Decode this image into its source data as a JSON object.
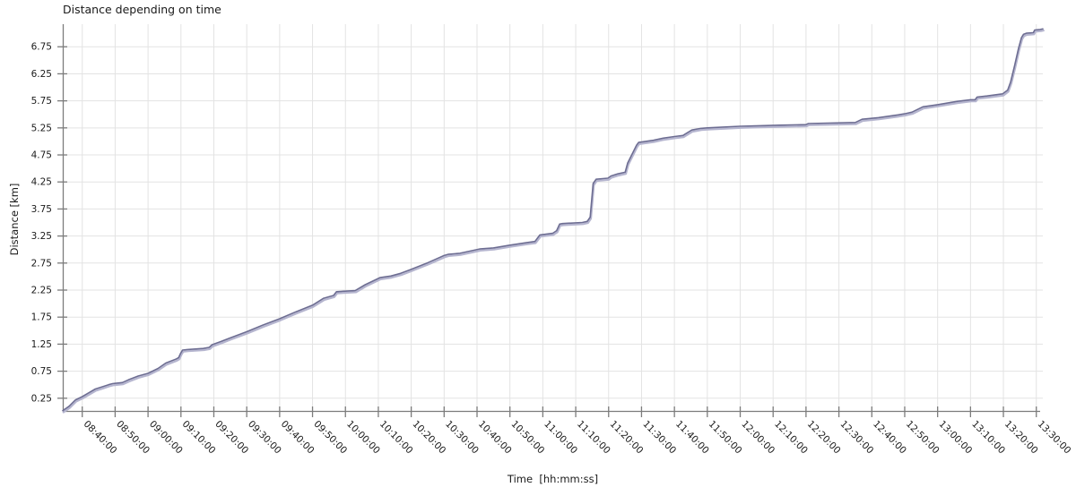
{
  "title": "Distance depending on time",
  "axes": {
    "x_label": "Time  [hh:mm:ss]",
    "y_label": "Distance [km]"
  },
  "chart_data": {
    "type": "line",
    "title": "Distance depending on time",
    "xlabel": "Time [hh:mm:ss]",
    "ylabel": "Distance [km]",
    "grid": true,
    "legend_position": "none",
    "x_tick_labels": [
      "08:40:00",
      "08:50:00",
      "09:00:00",
      "09:10:00",
      "09:20:00",
      "09:30:00",
      "09:40:00",
      "09:50:00",
      "10:00:00",
      "10:10:00",
      "10:20:00",
      "10:30:00",
      "10:40:00",
      "10:50:00",
      "11:00:00",
      "11:10:00",
      "11:20:00",
      "11:30:00",
      "11:40:00",
      "11:50:00",
      "12:00:00",
      "12:10:00",
      "12:20:00",
      "12:30:00",
      "12:40:00",
      "12:50:00",
      "13:00:00",
      "13:10:00",
      "13:20:00",
      "13:30:00"
    ],
    "x_tick_hours": [
      8.6667,
      8.8333,
      9.0,
      9.1667,
      9.3333,
      9.5,
      9.6667,
      9.8333,
      10.0,
      10.1667,
      10.3333,
      10.5,
      10.6667,
      10.8333,
      11.0,
      11.1667,
      11.3333,
      11.5,
      11.6667,
      11.8333,
      12.0,
      12.1667,
      12.3333,
      12.5,
      12.6667,
      12.8333,
      13.0,
      13.1667,
      13.3333,
      13.5
    ],
    "y_ticks": [
      "0.25",
      "0.75",
      "1.25",
      "1.75",
      "2.25",
      "2.75",
      "3.25",
      "3.75",
      "4.25",
      "4.75",
      "5.25",
      "5.75",
      "6.25",
      "6.75"
    ],
    "y_tick_values": [
      0.25,
      0.75,
      1.25,
      1.75,
      2.25,
      2.75,
      3.25,
      3.75,
      4.25,
      4.75,
      5.25,
      5.75,
      6.25,
      6.75
    ],
    "x_range_hours": [
      8.568,
      13.533
    ],
    "y_range_km": [
      -0.035,
      7.168
    ],
    "series": [
      {
        "name": "distance",
        "points": [
          [
            8.568,
            0.02
          ],
          [
            8.6,
            0.1
          ],
          [
            8.633,
            0.22
          ],
          [
            8.667,
            0.28
          ],
          [
            8.7,
            0.35
          ],
          [
            8.733,
            0.42
          ],
          [
            8.767,
            0.46
          ],
          [
            8.8,
            0.5
          ],
          [
            8.82,
            0.52
          ],
          [
            8.87,
            0.54
          ],
          [
            8.9,
            0.59
          ],
          [
            8.95,
            0.66
          ],
          [
            9.0,
            0.71
          ],
          [
            9.05,
            0.8
          ],
          [
            9.09,
            0.9
          ],
          [
            9.14,
            0.97
          ],
          [
            9.155,
            1.0
          ],
          [
            9.165,
            1.08
          ],
          [
            9.175,
            1.14
          ],
          [
            9.2,
            1.15
          ],
          [
            9.28,
            1.17
          ],
          [
            9.31,
            1.19
          ],
          [
            9.325,
            1.24
          ],
          [
            9.37,
            1.3
          ],
          [
            9.42,
            1.37
          ],
          [
            9.5,
            1.48
          ],
          [
            9.58,
            1.6
          ],
          [
            9.667,
            1.72
          ],
          [
            9.75,
            1.85
          ],
          [
            9.833,
            1.97
          ],
          [
            9.89,
            2.1
          ],
          [
            9.94,
            2.15
          ],
          [
            9.955,
            2.22
          ],
          [
            10.05,
            2.24
          ],
          [
            10.1,
            2.35
          ],
          [
            10.175,
            2.48
          ],
          [
            10.23,
            2.51
          ],
          [
            10.28,
            2.56
          ],
          [
            10.33,
            2.63
          ],
          [
            10.42,
            2.76
          ],
          [
            10.5,
            2.89
          ],
          [
            10.52,
            2.91
          ],
          [
            10.58,
            2.93
          ],
          [
            10.68,
            3.01
          ],
          [
            10.75,
            3.03
          ],
          [
            10.83,
            3.08
          ],
          [
            10.92,
            3.13
          ],
          [
            10.96,
            3.15
          ],
          [
            10.985,
            3.27
          ],
          [
            11.05,
            3.3
          ],
          [
            11.07,
            3.35
          ],
          [
            11.085,
            3.47
          ],
          [
            11.1,
            3.48
          ],
          [
            11.2,
            3.5
          ],
          [
            11.225,
            3.52
          ],
          [
            11.24,
            3.6
          ],
          [
            11.255,
            4.22
          ],
          [
            11.27,
            4.3
          ],
          [
            11.33,
            4.32
          ],
          [
            11.345,
            4.36
          ],
          [
            11.38,
            4.4
          ],
          [
            11.417,
            4.43
          ],
          [
            11.43,
            4.6
          ],
          [
            11.475,
            4.93
          ],
          [
            11.485,
            4.98
          ],
          [
            11.56,
            5.02
          ],
          [
            11.61,
            5.06
          ],
          [
            11.667,
            5.09
          ],
          [
            11.71,
            5.11
          ],
          [
            11.755,
            5.21
          ],
          [
            11.8,
            5.24
          ],
          [
            11.833,
            5.25
          ],
          [
            12.0,
            5.28
          ],
          [
            12.1,
            5.29
          ],
          [
            12.2,
            5.3
          ],
          [
            12.333,
            5.31
          ],
          [
            12.345,
            5.33
          ],
          [
            12.583,
            5.35
          ],
          [
            12.617,
            5.41
          ],
          [
            12.7,
            5.44
          ],
          [
            12.8,
            5.49
          ],
          [
            12.833,
            5.51
          ],
          [
            12.87,
            5.54
          ],
          [
            12.925,
            5.64
          ],
          [
            13.0,
            5.68
          ],
          [
            13.1,
            5.74
          ],
          [
            13.167,
            5.77
          ],
          [
            13.19,
            5.77
          ],
          [
            13.2,
            5.82
          ],
          [
            13.25,
            5.84
          ],
          [
            13.33,
            5.88
          ],
          [
            13.355,
            5.95
          ],
          [
            13.37,
            6.1
          ],
          [
            13.39,
            6.4
          ],
          [
            13.41,
            6.72
          ],
          [
            13.425,
            6.92
          ],
          [
            13.435,
            6.98
          ],
          [
            13.45,
            7.0
          ],
          [
            13.485,
            7.01
          ],
          [
            13.492,
            7.06
          ],
          [
            13.52,
            7.07
          ],
          [
            13.533,
            7.08
          ]
        ]
      }
    ],
    "colors": {
      "line_dark": "#6d6d92",
      "line_light": "#b5b5cf",
      "grid": "#e3e3e3",
      "axis": "#7c7c7c",
      "tick_text": "#1a1a1a",
      "background": "#ffffff"
    }
  }
}
